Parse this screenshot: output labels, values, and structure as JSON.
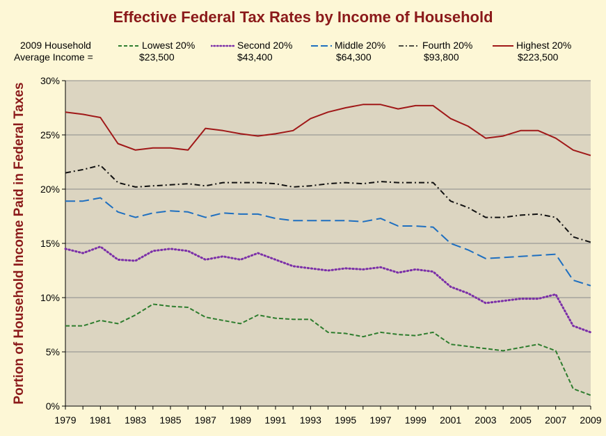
{
  "chart_data": {
    "type": "line",
    "title": "Effective Federal  Tax Rates by Income  of Household",
    "ylabel": "Portion of Household Income Paid in Federal Taxes",
    "xlabel": "",
    "legend_intro": [
      "2009 Household",
      "Average  Income ="
    ],
    "ylim": [
      0,
      30
    ],
    "xlim": [
      1979,
      2009
    ],
    "y_ticks": [
      0,
      5,
      10,
      15,
      20,
      25,
      30
    ],
    "y_tick_labels": [
      "0%",
      "5%",
      "10%",
      "15%",
      "20%",
      "25%",
      "30%"
    ],
    "x_ticks": [
      1979,
      1981,
      1983,
      1985,
      1987,
      1989,
      1991,
      1993,
      1995,
      1997,
      1999,
      2001,
      2003,
      2005,
      2007,
      2009
    ],
    "x_tick_labels": [
      "1979",
      "1981",
      "1983",
      "1985",
      "1987",
      "1989",
      "1991",
      "1993",
      "1995",
      "1997",
      "1999",
      "2001",
      "2003",
      "2005",
      "2007",
      "2009"
    ],
    "grid": true,
    "legend_position": "top",
    "plot_background": "#dcd5c1",
    "x": [
      1979,
      1980,
      1981,
      1982,
      1983,
      1984,
      1985,
      1986,
      1987,
      1988,
      1989,
      1990,
      1991,
      1992,
      1993,
      1994,
      1995,
      1996,
      1997,
      1998,
      1999,
      2000,
      2001,
      2002,
      2003,
      2004,
      2005,
      2006,
      2007,
      2008,
      2009
    ],
    "series": [
      {
        "name": "Lowest 20%",
        "avg_income": "$23,500",
        "color": "#2e7d2e",
        "dash": "dashed",
        "values": [
          7.4,
          7.4,
          7.9,
          7.6,
          8.4,
          9.4,
          9.2,
          9.1,
          8.2,
          7.9,
          7.6,
          8.4,
          8.1,
          8.0,
          8.0,
          6.8,
          6.7,
          6.4,
          6.8,
          6.6,
          6.5,
          6.8,
          5.7,
          5.5,
          5.3,
          5.1,
          5.4,
          5.7,
          5.1,
          1.6,
          1.0
        ]
      },
      {
        "name": "Second 20%",
        "avg_income": "$43,400",
        "color": "#7b2fa8",
        "dash": "dotted",
        "values": [
          14.5,
          14.1,
          14.7,
          13.5,
          13.4,
          14.3,
          14.5,
          14.3,
          13.5,
          13.8,
          13.5,
          14.1,
          13.5,
          12.9,
          12.7,
          12.5,
          12.7,
          12.6,
          12.8,
          12.3,
          12.6,
          12.4,
          11.0,
          10.4,
          9.5,
          9.7,
          9.9,
          9.9,
          10.3,
          7.4,
          6.8
        ]
      },
      {
        "name": "Middle 20%",
        "avg_income": "$64,300",
        "color": "#1e6fc0",
        "dash": "longdash",
        "values": [
          18.9,
          18.9,
          19.2,
          17.9,
          17.4,
          17.8,
          18.0,
          17.9,
          17.4,
          17.8,
          17.7,
          17.7,
          17.3,
          17.1,
          17.1,
          17.1,
          17.1,
          17.0,
          17.3,
          16.6,
          16.6,
          16.5,
          15.0,
          14.4,
          13.6,
          13.7,
          13.8,
          13.9,
          14.0,
          11.6,
          11.1
        ]
      },
      {
        "name": "Fourth 20%",
        "avg_income": "$93,800",
        "color": "#111111",
        "dash": "dashdot",
        "values": [
          21.5,
          21.8,
          22.2,
          20.6,
          20.2,
          20.3,
          20.4,
          20.5,
          20.3,
          20.6,
          20.6,
          20.6,
          20.5,
          20.2,
          20.3,
          20.5,
          20.6,
          20.5,
          20.7,
          20.6,
          20.6,
          20.6,
          18.9,
          18.3,
          17.4,
          17.4,
          17.6,
          17.7,
          17.4,
          15.6,
          15.1
        ]
      },
      {
        "name": "Highest 20%",
        "avg_income": "$223,500",
        "color": "#a01818",
        "dash": "solid",
        "values": [
          27.1,
          26.9,
          26.6,
          24.2,
          23.6,
          23.8,
          23.8,
          23.6,
          25.6,
          25.4,
          25.1,
          24.9,
          25.1,
          25.4,
          26.5,
          27.1,
          27.5,
          27.8,
          27.8,
          27.4,
          27.7,
          27.7,
          26.5,
          25.8,
          24.7,
          24.9,
          25.4,
          25.4,
          24.7,
          23.6,
          23.1
        ]
      }
    ]
  }
}
